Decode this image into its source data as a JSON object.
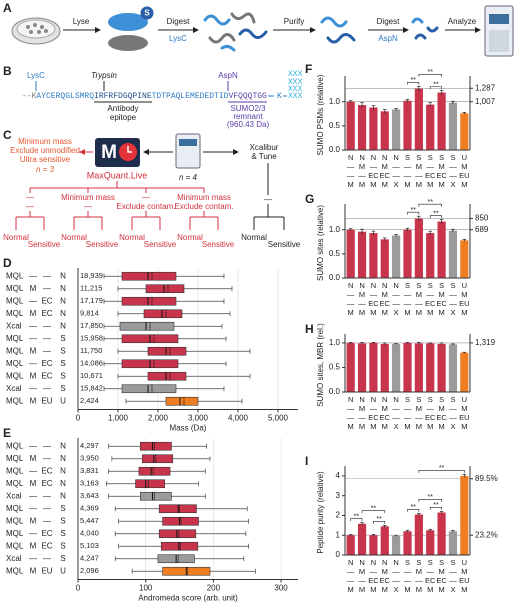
{
  "panel_labels": [
    "A",
    "B",
    "C",
    "D",
    "E",
    "F",
    "G",
    "H",
    "I"
  ],
  "workflow": {
    "steps": [
      "Lyse",
      "Digest",
      "Purify",
      "Digest",
      "Analyze"
    ],
    "enzymes": [
      "LysC",
      "AspN"
    ],
    "badge": "S"
  },
  "sequence": {
    "enzymes": [
      "LysC",
      "Trypsin",
      "AspN"
    ],
    "parts": [
      "--K",
      "AYCERQGLSMRQ",
      "IRFRFDGQPINE",
      "TDTPAQLEMEDEDTID",
      "VFQQQTGG"
    ],
    "epitope": [
      "Antibody",
      "epitope"
    ],
    "remnant": [
      "SUMO2/3",
      "remnant",
      "(960.43 Da)"
    ],
    "branch": "K",
    "xxx": [
      "XXX",
      "XXX",
      "XXX",
      "XXX"
    ]
  },
  "strategy": {
    "options": [
      "Minimum mass",
      "Exclude unmodified",
      "Ultra sensitive",
      "n = 3"
    ],
    "logo": "M",
    "software": "MaxQuant.Live",
    "n": "n = 4",
    "vendor": [
      "Xcalibur",
      "& Tune"
    ],
    "nodes": [
      [
        "—",
        "—"
      ],
      [
        "Minimum mass",
        "—"
      ],
      [
        "—",
        "Exclude contam."
      ],
      [
        "Minimum mass",
        "Exclude contam."
      ]
    ],
    "vendor_node": "—",
    "leaves": [
      "Normal",
      "Sensitive"
    ]
  },
  "chart_data": [
    {
      "type": "box",
      "xlabel": "Mass (Da)",
      "xlim": [
        0,
        5500
      ],
      "xticks": [
        0,
        {
          "value": 1000,
          "label": "1,000"
        },
        {
          "value": 2000,
          "label": "2,000"
        },
        {
          "value": 3000,
          "label": "3,000"
        },
        {
          "value": 4000,
          "label": "4,000"
        },
        {
          "value": 5000,
          "label": "5,000"
        }
      ],
      "grid": true,
      "row_labels": [
        [
          "MQL",
          "—",
          "—",
          "N"
        ],
        [
          "MQL",
          "M",
          "—",
          "N"
        ],
        [
          "MQL",
          "—",
          "EC",
          "N"
        ],
        [
          "MQL",
          "M",
          "EC",
          "N"
        ],
        [
          "Xcal",
          "—",
          "—",
          "N"
        ],
        [
          "MQL",
          "—",
          "—",
          "S"
        ],
        [
          "MQL",
          "M",
          "—",
          "S"
        ],
        [
          "MQL",
          "—",
          "EC",
          "S"
        ],
        [
          "MQL",
          "M",
          "EC",
          "S"
        ],
        [
          "Xcal",
          "—",
          "—",
          "S"
        ],
        [
          "MQL",
          "M",
          "EU",
          "U"
        ]
      ],
      "counts": [
        "18,939",
        "11,215",
        "17,179",
        "9,814",
        "17,850",
        "15,958",
        "11,750",
        "14,086",
        "10,671",
        "15,842",
        "2,424"
      ],
      "colors": [
        "#c9344d",
        "#c9344d",
        "#c9344d",
        "#c9344d",
        "#9b9b9b",
        "#c9344d",
        "#c9344d",
        "#c9344d",
        "#c9344d",
        "#9b9b9b",
        "#ef7d22"
      ],
      "boxes": [
        {
          "low": 650,
          "q1": 1100,
          "median": 1750,
          "mean": 1850,
          "q3": 2450,
          "high": 3650
        },
        {
          "low": 1000,
          "q1": 1700,
          "median": 2150,
          "mean": 2250,
          "q3": 2650,
          "high": 3850
        },
        {
          "low": 650,
          "q1": 1100,
          "median": 1750,
          "mean": 1850,
          "q3": 2450,
          "high": 3650
        },
        {
          "low": 1000,
          "q1": 1650,
          "median": 2100,
          "mean": 2200,
          "q3": 2600,
          "high": 3800
        },
        {
          "low": 650,
          "q1": 1050,
          "median": 1700,
          "mean": 1800,
          "q3": 2400,
          "high": 3600
        },
        {
          "low": 650,
          "q1": 1100,
          "median": 1800,
          "mean": 1900,
          "q3": 2500,
          "high": 3700
        },
        {
          "low": 1000,
          "q1": 1750,
          "median": 2200,
          "mean": 2300,
          "q3": 2700,
          "high": 4300
        },
        {
          "low": 650,
          "q1": 1100,
          "median": 1800,
          "mean": 1900,
          "q3": 2500,
          "high": 3700
        },
        {
          "low": 1000,
          "q1": 1750,
          "median": 2200,
          "mean": 2300,
          "q3": 2700,
          "high": 4300
        },
        {
          "low": 650,
          "q1": 1100,
          "median": 1750,
          "mean": 1850,
          "q3": 2450,
          "high": 3650
        },
        {
          "low": 1200,
          "q1": 2200,
          "median": 2550,
          "mean": 2650,
          "q3": 3000,
          "high": 4100
        }
      ]
    },
    {
      "type": "box",
      "xlabel": "Andromeda score (arb. unit)",
      "xlim": [
        0,
        325
      ],
      "xticks": [
        0,
        100,
        200,
        300
      ],
      "grid": true,
      "row_labels": [
        [
          "MQL",
          "—",
          "—",
          "N"
        ],
        [
          "MQL",
          "M",
          "—",
          "N"
        ],
        [
          "MQL",
          "—",
          "EC",
          "N"
        ],
        [
          "MQL",
          "M",
          "EC",
          "N"
        ],
        [
          "Xcal",
          "—",
          "—",
          "N"
        ],
        [
          "MQL",
          "—",
          "—",
          "S"
        ],
        [
          "MQL",
          "M",
          "—",
          "S"
        ],
        [
          "MQL",
          "—",
          "EC",
          "S"
        ],
        [
          "MQL",
          "M",
          "EC",
          "S"
        ],
        [
          "Xcal",
          "—",
          "—",
          "S"
        ],
        [
          "MQL",
          "M",
          "EU",
          "U"
        ]
      ],
      "counts": [
        "4,297",
        "3,950",
        "3,831",
        "3,163",
        "3,643",
        "4,369",
        "5,447",
        "4,040",
        "5,103",
        "4,247",
        "2,096"
      ],
      "colors": [
        "#c9344d",
        "#c9344d",
        "#c9344d",
        "#c9344d",
        "#9b9b9b",
        "#c9344d",
        "#c9344d",
        "#c9344d",
        "#c9344d",
        "#9b9b9b",
        "#ef7d22"
      ],
      "boxes": [
        {
          "low": 45,
          "q1": 92,
          "median": 110,
          "mean": 113,
          "q3": 138,
          "high": 190
        },
        {
          "low": 50,
          "q1": 95,
          "median": 112,
          "mean": 115,
          "q3": 140,
          "high": 195
        },
        {
          "low": 45,
          "q1": 90,
          "median": 108,
          "mean": 111,
          "q3": 136,
          "high": 188
        },
        {
          "low": 42,
          "q1": 85,
          "median": 100,
          "mean": 104,
          "q3": 128,
          "high": 178
        },
        {
          "low": 45,
          "q1": 92,
          "median": 110,
          "mean": 113,
          "q3": 138,
          "high": 188
        },
        {
          "low": 55,
          "q1": 120,
          "median": 148,
          "mean": 150,
          "q3": 175,
          "high": 250
        },
        {
          "low": 60,
          "q1": 125,
          "median": 150,
          "mean": 152,
          "q3": 178,
          "high": 252
        },
        {
          "low": 55,
          "q1": 120,
          "median": 146,
          "mean": 149,
          "q3": 174,
          "high": 248
        },
        {
          "low": 60,
          "q1": 123,
          "median": 149,
          "mean": 151,
          "q3": 177,
          "high": 252
        },
        {
          "low": 55,
          "q1": 118,
          "median": 145,
          "mean": 148,
          "q3": 172,
          "high": 245
        },
        {
          "low": 80,
          "q1": 125,
          "median": 160,
          "mean": 162,
          "q3": 195,
          "high": 262
        }
      ]
    },
    {
      "type": "bar",
      "ylabel": "SUMO PSMs (relative)",
      "label_rows": [
        [
          "N",
          "N",
          "N",
          "N",
          "N",
          "S",
          "S",
          "S",
          "S",
          "S",
          "U"
        ],
        [
          "—",
          "M",
          "—",
          "M",
          "—",
          "—",
          "M",
          "—",
          "M",
          "—",
          "M"
        ],
        [
          "—",
          "—",
          "EC",
          "EC",
          "—",
          "—",
          "—",
          "EC",
          "EC",
          "—",
          "EU"
        ],
        [
          "M",
          "M",
          "M",
          "M",
          "X",
          "M",
          "M",
          "M",
          "M",
          "X",
          "M"
        ]
      ],
      "values": [
        1.0,
        0.93,
        0.88,
        0.8,
        0.84,
        1.02,
        1.27,
        0.94,
        1.19,
        0.98,
        0.76
      ],
      "errors": [
        0.02,
        0.05,
        0.04,
        0.04,
        0.02,
        0.03,
        0.05,
        0.04,
        0.04,
        0.03,
        0.02
      ],
      "colors": [
        "#c9344d",
        "#c9344d",
        "#c9344d",
        "#c9344d",
        "#9b9b9b",
        "#c9344d",
        "#c9344d",
        "#c9344d",
        "#c9344d",
        "#9b9b9b",
        "#ef7d22"
      ],
      "ylim": [
        0,
        1.45
      ],
      "yticks": [
        {
          "value": 0,
          "label": "0.0"
        },
        {
          "value": 0.5,
          "label": "0.5"
        },
        {
          "value": 1,
          "label": "1.0"
        }
      ],
      "y2lim": [
        0,
        1460.15
      ],
      "y2ticks": [
        {
          "value": 1007,
          "label": "1,007"
        },
        {
          "value": 1287,
          "label": "1,287"
        }
      ],
      "significance": [
        {
          "bars": [
            5,
            6
          ],
          "text": "**"
        },
        {
          "bars": [
            7,
            8
          ],
          "text": "**"
        },
        {
          "bars": [
            6,
            8
          ],
          "text": "**"
        }
      ]
    },
    {
      "type": "bar",
      "ylabel": "SUMO sites (relative)",
      "label_rows": [
        [
          "N",
          "N",
          "N",
          "N",
          "N",
          "S",
          "S",
          "S",
          "S",
          "S",
          "U"
        ],
        [
          "—",
          "M",
          "—",
          "M",
          "—",
          "—",
          "M",
          "—",
          "M",
          "—",
          "M"
        ],
        [
          "—",
          "—",
          "EC",
          "EC",
          "—",
          "—",
          "—",
          "EC",
          "EC",
          "—",
          "EU"
        ],
        [
          "M",
          "M",
          "M",
          "M",
          "X",
          "M",
          "M",
          "M",
          "M",
          "X",
          "M"
        ]
      ],
      "values": [
        1.0,
        0.96,
        0.93,
        0.8,
        0.88,
        1.0,
        1.23,
        0.93,
        1.17,
        0.98,
        0.78
      ],
      "errors": [
        0.02,
        0.05,
        0.04,
        0.03,
        0.02,
        0.03,
        0.05,
        0.04,
        0.04,
        0.03,
        0.02
      ],
      "colors": [
        "#c9344d",
        "#c9344d",
        "#c9344d",
        "#c9344d",
        "#9b9b9b",
        "#c9344d",
        "#c9344d",
        "#c9344d",
        "#c9344d",
        "#9b9b9b",
        "#ef7d22"
      ],
      "ylim": [
        0,
        1.45
      ],
      "yticks": [
        {
          "value": 0,
          "label": "0.0"
        },
        {
          "value": 0.5,
          "label": "0.5"
        },
        {
          "value": 1,
          "label": "1.0"
        }
      ],
      "y2lim": [
        0,
        999.05
      ],
      "y2ticks": [
        689,
        850
      ],
      "significance": [
        {
          "bars": [
            5,
            6
          ],
          "text": "**"
        },
        {
          "bars": [
            7,
            8
          ],
          "text": "**"
        },
        {
          "bars": [
            6,
            8
          ],
          "text": "**"
        }
      ]
    },
    {
      "type": "bar",
      "ylabel": "SUMO sites, MBR (rel.)",
      "label_rows": [
        [
          "N",
          "N",
          "N",
          "N",
          "N",
          "S",
          "S",
          "S",
          "S",
          "S",
          "U"
        ],
        [
          "—",
          "M",
          "—",
          "M",
          "—",
          "—",
          "M",
          "—",
          "M",
          "—",
          "M"
        ],
        [
          "—",
          "—",
          "EC",
          "EC",
          "—",
          "—",
          "—",
          "EC",
          "EC",
          "—",
          "EU"
        ],
        [
          "M",
          "M",
          "M",
          "M",
          "X",
          "M",
          "M",
          "M",
          "M",
          "X",
          "M"
        ]
      ],
      "values": [
        1.0,
        0.99,
        1.0,
        0.98,
        0.98,
        1.0,
        0.99,
        0.99,
        0.98,
        0.97,
        0.8
      ],
      "errors": [
        0.01,
        0.02,
        0.01,
        0.02,
        0.01,
        0.01,
        0.02,
        0.01,
        0.02,
        0.01,
        0.01
      ],
      "colors": [
        "#c9344d",
        "#c9344d",
        "#c9344d",
        "#c9344d",
        "#9b9b9b",
        "#c9344d",
        "#c9344d",
        "#c9344d",
        "#c9344d",
        "#9b9b9b",
        "#ef7d22"
      ],
      "ylim": [
        0,
        1.1
      ],
      "yticks": [
        {
          "value": 0,
          "label": "0.0"
        },
        {
          "value": 0.5,
          "label": "0.5"
        },
        {
          "value": 1,
          "label": "1.0"
        }
      ],
      "y2lim": [
        0,
        1450.9
      ],
      "y2ticks": [
        {
          "value": 1319,
          "label": "1,319"
        }
      ],
      "significance": []
    },
    {
      "type": "bar",
      "ylabel": "Peptide purity (relative)",
      "label_rows": [
        [
          "N",
          "N",
          "N",
          "N",
          "N",
          "S",
          "S",
          "S",
          "S",
          "S",
          "U"
        ],
        [
          "—",
          "M",
          "—",
          "M",
          "—",
          "—",
          "M",
          "—",
          "M",
          "—",
          "M"
        ],
        [
          "—",
          "—",
          "EC",
          "EC",
          "—",
          "—",
          "—",
          "EC",
          "EC",
          "—",
          "EU"
        ],
        [
          "M",
          "M",
          "M",
          "M",
          "X",
          "M",
          "M",
          "M",
          "M",
          "X",
          "M"
        ]
      ],
      "values": [
        1.0,
        1.58,
        1.0,
        1.45,
        0.97,
        1.2,
        2.05,
        1.25,
        2.15,
        1.2,
        4.0
      ],
      "errors": [
        0.04,
        0.06,
        0.04,
        0.05,
        0.03,
        0.05,
        0.06,
        0.05,
        0.06,
        0.04,
        0.08
      ],
      "colors": [
        "#c9344d",
        "#c9344d",
        "#c9344d",
        "#c9344d",
        "#9b9b9b",
        "#c9344d",
        "#c9344d",
        "#c9344d",
        "#c9344d",
        "#9b9b9b",
        "#ef7d22"
      ],
      "ylim": [
        0,
        4.3
      ],
      "yticks": [
        0,
        1,
        2,
        3,
        4
      ],
      "y2lim": [
        0,
        99.76
      ],
      "y2ticks": [
        {
          "value": 23.2,
          "label": "23.2%"
        },
        {
          "value": 89.5,
          "label": "89.5%"
        }
      ],
      "significance": [
        {
          "bars": [
            0,
            1
          ],
          "text": "**"
        },
        {
          "bars": [
            2,
            3
          ],
          "text": "**"
        },
        {
          "bars": [
            1,
            3
          ],
          "text": "**"
        },
        {
          "bars": [
            5,
            6
          ],
          "text": "**"
        },
        {
          "bars": [
            7,
            8
          ],
          "text": "**"
        },
        {
          "bars": [
            6,
            8
          ],
          "text": "**"
        },
        {
          "bars": [
            6,
            10
          ],
          "text": "**"
        }
      ]
    }
  ]
}
